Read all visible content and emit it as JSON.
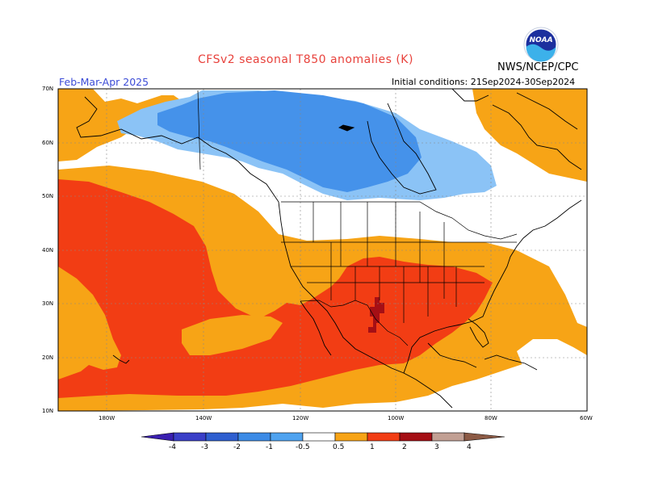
{
  "header": {
    "title": "CFSv2 seasonal T850 anomalies (K)",
    "agency": "NWS/NCEP/CPC",
    "logo_text": "NOAA",
    "season": "Feb-Mar-Apr 2025",
    "initial_conditions": "Initial conditions: 21Sep2024-30Sep2024"
  },
  "axes": {
    "lat_labels": [
      "70N",
      "60N",
      "50N",
      "40N",
      "30N",
      "20N",
      "10N"
    ],
    "lon_labels": [
      "180W",
      "140W",
      "120W",
      "100W",
      "80W",
      "60W"
    ]
  },
  "colorbar": {
    "levels": [
      "-4",
      "-3",
      "-2",
      "-1",
      "-0.5",
      "0.5",
      "1",
      "2",
      "3",
      "4"
    ],
    "colors": [
      "#3a1fb0",
      "#2f5fd0",
      "#3c8be6",
      "#4fa3f0",
      "#8bc3f6",
      "#ffffff",
      "#f7a416",
      "#f7791c",
      "#f23d14",
      "#a50f15",
      "#c2a094",
      "#8c5a45"
    ]
  },
  "palette": {
    "strong_warm": "#f23d14",
    "warm": "#f7a416",
    "extreme_warm": "#a50f15",
    "cool": "#8bc3f6",
    "cold": "#4592ea",
    "title_red": "#e8423c",
    "season_blue": "#3b4bd6"
  }
}
